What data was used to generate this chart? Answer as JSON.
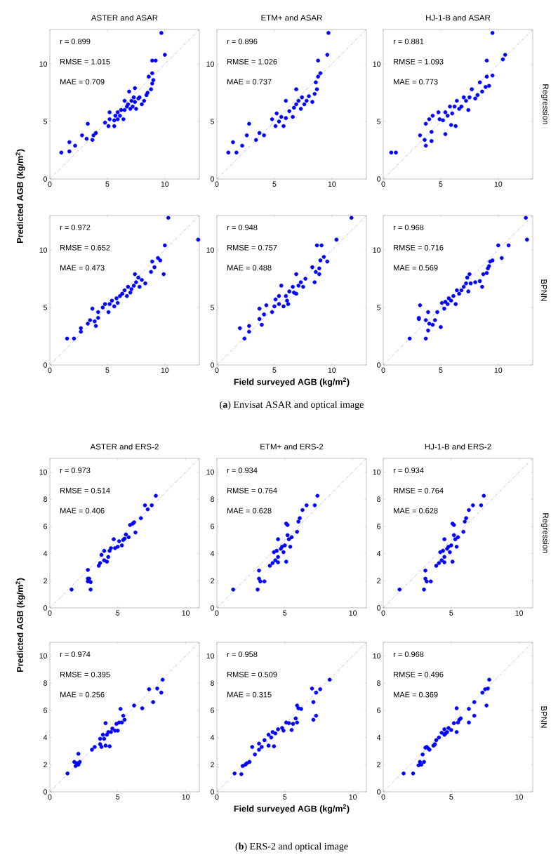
{
  "chart_data": [
    {
      "type": "scatter",
      "title": "ASTER and ASAR",
      "ylabel": "Predicted AGB (kg/m$^{2}$)",
      "annotations": [
        "r = 0.899",
        "RMSE = 1.015",
        "MAE = 0.709"
      ],
      "xlim": [
        0,
        13
      ],
      "ylim": [
        0,
        13
      ],
      "xticks": [
        0,
        5,
        10
      ],
      "yticks": [
        0,
        5,
        10
      ],
      "series": [
        {
          "marker": "circle",
          "color": "#0000ff",
          "x": [
            1.0,
            1.7,
            1.7,
            2.2,
            2.8,
            3.2,
            3.3,
            3.7,
            3.8,
            4.0,
            4.8,
            5.1,
            5.2,
            5.2,
            5.6,
            5.6,
            5.7,
            5.9,
            5.9,
            6.1,
            6.2,
            6.4,
            6.5,
            6.5,
            6.7,
            6.8,
            6.9,
            7.0,
            7.1,
            7.2,
            7.3,
            7.4,
            7.4,
            7.5,
            7.7,
            7.8,
            8.0,
            8.2,
            8.4,
            8.5,
            8.6,
            8.8,
            8.9,
            8.9,
            9.0,
            8.9,
            9.2,
            9.7,
            10.0
          ],
          "values": [
            2.3,
            2.4,
            3.2,
            2.9,
            3.8,
            3.5,
            4.8,
            3.4,
            3.8,
            4.0,
            4.9,
            4.6,
            5.8,
            5.2,
            5.1,
            4.6,
            5.5,
            5.8,
            5.2,
            5.5,
            6.0,
            5.2,
            6.0,
            6.8,
            6.3,
            6.5,
            7.6,
            6.1,
            6.8,
            6.3,
            7.1,
            6.7,
            7.9,
            6.1,
            7.0,
            7.1,
            6.5,
            6.8,
            7.3,
            7.5,
            8.9,
            7.8,
            8.3,
            9.2,
            8.6,
            10.3,
            10.3,
            12.7,
            10.8
          ]
        },
        {
          "type": "line",
          "color": "#9999dd",
          "line_style": "dashed",
          "x": [
            0,
            13
          ],
          "values": [
            0,
            13
          ]
        }
      ]
    },
    {
      "type": "scatter",
      "title": "ETM+ and ASAR",
      "annotations": [
        "r = 0.896",
        "RMSE = 1.026",
        "MAE = 0.737"
      ],
      "xlim": [
        0,
        13
      ],
      "ylim": [
        0,
        13
      ],
      "xticks": [
        0,
        5,
        10
      ],
      "yticks": [
        0,
        5,
        10
      ],
      "series": [
        {
          "marker": "circle",
          "color": "#0000ff",
          "x": [
            1.0,
            1.4,
            1.7,
            2.2,
            2.6,
            2.8,
            3.4,
            3.7,
            4.1,
            4.8,
            5.1,
            5.2,
            5.4,
            5.6,
            5.8,
            6.0,
            6.0,
            6.3,
            6.6,
            6.7,
            6.9,
            6.9,
            7.1,
            7.3,
            7.4,
            7.6,
            7.8,
            8.0,
            8.3,
            8.5,
            8.6,
            8.7,
            8.8,
            9.0,
            8.8,
            9.6,
            9.7
          ],
          "values": [
            2.3,
            3.2,
            2.3,
            2.9,
            3.8,
            4.8,
            3.4,
            4.0,
            3.8,
            5.2,
            4.6,
            5.7,
            5.0,
            5.4,
            4.6,
            5.3,
            6.8,
            5.9,
            5.4,
            6.2,
            6.5,
            7.8,
            6.8,
            6.1,
            7.1,
            6.5,
            6.8,
            7.2,
            6.7,
            7.4,
            8.4,
            7.8,
            8.9,
            9.2,
            10.3,
            10.8,
            12.7
          ]
        },
        {
          "type": "line",
          "color": "#9999dd",
          "line_style": "dashed",
          "x": [
            0,
            13
          ],
          "values": [
            0,
            13
          ]
        }
      ]
    },
    {
      "type": "scatter",
      "title": "HJ-1-B and ASAR",
      "y2label": "Regression",
      "annotations": [
        "r = 0.881",
        "RMSE = 1.093",
        "MAE = 0.773"
      ],
      "xlim": [
        0,
        13
      ],
      "ylim": [
        0,
        13
      ],
      "xticks": [
        0,
        5,
        10
      ],
      "yticks": [
        0,
        5,
        10
      ],
      "series": [
        {
          "marker": "circle",
          "color": "#0000ff",
          "x": [
            0.7,
            1.1,
            3.2,
            3.6,
            3.7,
            3.7,
            4.0,
            4.2,
            4.3,
            4.2,
            4.8,
            4.9,
            5.2,
            5.4,
            5.4,
            5.6,
            5.8,
            5.9,
            6.0,
            6.2,
            6.3,
            6.4,
            6.6,
            6.8,
            7.0,
            7.2,
            7.4,
            7.5,
            7.7,
            8.0,
            8.2,
            8.4,
            8.6,
            8.9,
            9.0,
            9.0,
            9.2,
            9.5,
            9.5,
            10.4,
            10.6
          ],
          "values": [
            2.3,
            2.3,
            3.8,
            3.4,
            2.9,
            4.8,
            5.2,
            4.1,
            5.5,
            3.3,
            5.8,
            5.2,
            5.1,
            3.9,
            5.8,
            5.5,
            6.3,
            4.7,
            5.7,
            6.3,
            4.6,
            6.8,
            6.1,
            6.3,
            7.1,
            6.8,
            6.0,
            7.1,
            7.8,
            7.0,
            7.3,
            8.4,
            7.6,
            8.0,
            8.9,
            10.3,
            8.1,
            9.0,
            12.7,
            10.4,
            10.8
          ]
        },
        {
          "type": "line",
          "color": "#9999dd",
          "line_style": "dashed",
          "x": [
            0,
            13
          ],
          "values": [
            0,
            13
          ]
        }
      ]
    },
    {
      "type": "scatter",
      "annotations": [
        "r = 0.972",
        "RMSE = 0.652",
        "MAE = 0.473"
      ],
      "xlim": [
        0,
        13
      ],
      "ylim": [
        0,
        13
      ],
      "xticks": [
        0,
        5,
        10
      ],
      "yticks": [
        0,
        5,
        10
      ],
      "series": [
        {
          "marker": "circle",
          "color": "#0000ff",
          "x": [
            1.5,
            2.1,
            2.7,
            2.7,
            3.3,
            3.5,
            3.7,
            3.9,
            4.0,
            4.2,
            4.2,
            4.6,
            4.8,
            5.1,
            5.2,
            5.4,
            5.6,
            5.8,
            5.9,
            6.1,
            6.3,
            6.5,
            6.7,
            6.8,
            7.0,
            7.1,
            7.3,
            7.4,
            7.5,
            7.7,
            7.8,
            8.0,
            8.3,
            8.8,
            8.9,
            9.1,
            9.4,
            9.6,
            9.9,
            10.0,
            10.3,
            12.9
          ],
          "values": [
            2.3,
            2.3,
            2.9,
            3.2,
            3.6,
            3.9,
            4.9,
            3.8,
            3.4,
            4.1,
            4.6,
            5.0,
            5.3,
            4.6,
            5.3,
            5.6,
            5.1,
            5.8,
            5.4,
            6.0,
            6.2,
            6.5,
            6.0,
            6.8,
            6.3,
            6.6,
            6.9,
            7.9,
            7.2,
            7.6,
            6.8,
            7.4,
            7.1,
            8.1,
            9.0,
            8.5,
            9.3,
            9.1,
            7.9,
            10.4,
            12.8,
            10.9
          ]
        },
        {
          "type": "line",
          "color": "#9999dd",
          "line_style": "dashed",
          "x": [
            0,
            13
          ],
          "values": [
            0,
            13
          ]
        }
      ]
    },
    {
      "type": "scatter",
      "xlabel": "Field surveyed AGB (kg/m$^{2}$)",
      "annotations": [
        "r = 0.948",
        "RMSE = 0.757",
        "MAE = 0.488",
        "(**a**) Envisat ASAR and optical image"
      ],
      "xlim": [
        0,
        13
      ],
      "ylim": [
        0,
        13
      ],
      "xticks": [
        0,
        5,
        10
      ],
      "yticks": [
        0,
        5,
        10
      ],
      "series": [
        {
          "marker": "circle",
          "color": "#0000ff",
          "x": [
            2.0,
            2.4,
            2.8,
            2.8,
            3.7,
            3.7,
            3.9,
            4.1,
            4.3,
            4.8,
            5.0,
            5.1,
            5.4,
            5.4,
            5.6,
            5.8,
            6.0,
            6.1,
            6.3,
            6.2,
            6.6,
            6.7,
            6.9,
            6.9,
            7.1,
            7.3,
            7.5,
            7.7,
            8.3,
            8.5,
            8.6,
            8.7,
            8.9,
            8.9,
            9.0,
            9.1,
            9.3,
            9.6,
            10.4,
            11.7
          ],
          "values": [
            3.2,
            2.3,
            2.9,
            3.4,
            4.0,
            4.9,
            3.5,
            4.4,
            5.2,
            4.6,
            5.1,
            5.7,
            5.3,
            6.0,
            6.9,
            5.1,
            6.0,
            5.6,
            6.4,
            5.3,
            6.8,
            6.3,
            6.2,
            7.9,
            6.9,
            7.2,
            6.8,
            7.5,
            8.5,
            7.2,
            8.1,
            10.4,
            7.9,
            8.4,
            9.1,
            10.4,
            9.4,
            9.0,
            10.9,
            12.8
          ]
        },
        {
          "type": "line",
          "color": "#9999dd",
          "line_style": "dashed",
          "x": [
            0,
            13
          ],
          "values": [
            0,
            13
          ]
        }
      ]
    },
    {
      "type": "scatter",
      "y2label": "BPNN",
      "annotations": [
        "r = 0.968",
        "RMSE = 0.716",
        "MAE = 0.569"
      ],
      "xlim": [
        0,
        13
      ],
      "ylim": [
        0,
        13
      ],
      "xticks": [
        0,
        5,
        10
      ],
      "yticks": [
        0,
        5,
        10
      ],
      "series": [
        {
          "marker": "circle",
          "color": "#0000ff",
          "x": [
            2.3,
            3.1,
            3.1,
            3.2,
            3.7,
            3.7,
            3.9,
            3.9,
            4.0,
            4.3,
            4.5,
            4.7,
            5.0,
            5.1,
            5.3,
            5.4,
            5.6,
            5.7,
            5.9,
            6.1,
            6.3,
            6.4,
            6.6,
            6.8,
            7.0,
            7.2,
            7.3,
            7.4,
            7.5,
            7.6,
            8.0,
            8.4,
            8.6,
            8.7,
            9.0,
            9.1,
            9.2,
            9.3,
            9.5,
            10.0,
            10.3,
            10.9,
            12.4,
            12.5
          ],
          "values": [
            2.3,
            4.1,
            4.0,
            5.2,
            2.3,
            3.9,
            3.0,
            4.6,
            3.6,
            3.5,
            3.9,
            4.6,
            3.3,
            5.4,
            4.9,
            5.5,
            5.3,
            5.8,
            5.6,
            6.0,
            5.3,
            6.5,
            6.2,
            6.5,
            6.8,
            7.1,
            7.6,
            6.4,
            7.9,
            7.1,
            7.2,
            7.3,
            6.8,
            7.9,
            8.0,
            8.4,
            8.6,
            9.0,
            9.1,
            10.4,
            9.3,
            10.4,
            12.8,
            10.9
          ]
        },
        {
          "type": "line",
          "color": "#9999dd",
          "line_style": "dashed",
          "x": [
            0,
            13
          ],
          "values": [
            0,
            13
          ]
        }
      ]
    },
    {
      "type": "scatter",
      "title": "ASTER and ERS-2",
      "ylabel": "Predicted AGB (kg/m$^{2}$)",
      "annotations": [
        "r = 0.973",
        "RMSE = 0.514",
        "MAE = 0.406"
      ],
      "xlim": [
        0,
        11
      ],
      "ylim": [
        0,
        11
      ],
      "xticks": [
        0,
        5,
        10
      ],
      "yticks": [
        0,
        2,
        4,
        6,
        8,
        10
      ],
      "series": [
        {
          "marker": "circle",
          "color": "#0000ff",
          "x": [
            1.6,
            2.8,
            2.8,
            2.9,
            2.8,
            3.0,
            3.0,
            3.6,
            3.7,
            3.8,
            4.0,
            4.0,
            4.2,
            4.3,
            4.4,
            4.5,
            4.7,
            4.8,
            5.0,
            5.1,
            5.3,
            5.4,
            5.5,
            5.6,
            5.8,
            5.9,
            6.1,
            6.2,
            6.3,
            6.7,
            7.0,
            7.2,
            7.5,
            7.8
          ],
          "values": [
            1.35,
            2.8,
            2.15,
            2.15,
            1.95,
            1.9,
            1.35,
            3.1,
            3.3,
            3.9,
            4.2,
            3.5,
            3.4,
            3.75,
            4.2,
            4.4,
            5.05,
            4.4,
            4.5,
            4.9,
            4.6,
            5.0,
            5.1,
            5.4,
            5.2,
            6.1,
            6.2,
            6.3,
            5.55,
            6.6,
            7.55,
            7.25,
            7.55,
            8.25
          ]
        },
        {
          "type": "line",
          "color": "#9999dd",
          "line_style": "dashed",
          "x": [
            0,
            11
          ],
          "values": [
            0,
            11
          ]
        }
      ]
    },
    {
      "type": "scatter",
      "title": "ETM+ and ERS-2",
      "annotations": [
        "r = 0.934",
        "RMSE = 0.764",
        "MAE = 0.628"
      ],
      "xlim": [
        0,
        11
      ],
      "ylim": [
        0,
        11
      ],
      "xticks": [
        0,
        5,
        10
      ],
      "yticks": [
        0,
        2,
        4,
        6,
        8,
        10
      ],
      "series": [
        {
          "marker": "circle",
          "color": "#0000ff",
          "x": [
            1.2,
            3.0,
            3.1,
            3.1,
            3.2,
            3.5,
            3.9,
            4.1,
            4.2,
            4.3,
            4.4,
            4.5,
            4.5,
            4.5,
            4.7,
            4.8,
            4.9,
            5.0,
            5.1,
            5.1,
            5.2,
            5.2,
            5.3,
            5.4,
            5.5,
            5.9,
            6.0,
            6.1,
            6.3,
            6.6,
            7.2,
            7.4
          ],
          "values": [
            1.35,
            1.35,
            2.75,
            2.15,
            1.95,
            1.95,
            3.1,
            3.3,
            4.1,
            3.5,
            4.2,
            3.35,
            5.05,
            3.75,
            4.35,
            4.5,
            4.1,
            4.6,
            3.4,
            6.2,
            5.35,
            6.1,
            5.05,
            4.5,
            5.2,
            5.6,
            6.35,
            6.6,
            7.2,
            7.55,
            7.55,
            8.25
          ]
        },
        {
          "type": "line",
          "color": "#9999dd",
          "line_style": "dashed",
          "x": [
            0,
            11
          ],
          "values": [
            0,
            11
          ]
        }
      ]
    },
    {
      "type": "scatter",
      "title": "HJ-1-B and ERS-2",
      "y2label": "Regression",
      "annotations": [
        "r = 0.934",
        "RMSE = 0.764",
        "MAE = 0.628"
      ],
      "xlim": [
        0,
        11
      ],
      "ylim": [
        0,
        11
      ],
      "xticks": [
        0,
        5,
        10
      ],
      "yticks": [
        0,
        2,
        4,
        6,
        8,
        10
      ],
      "series": [
        {
          "marker": "circle",
          "color": "#0000ff",
          "x": [
            1.2,
            3.0,
            3.1,
            3.1,
            3.2,
            3.5,
            3.9,
            4.1,
            4.2,
            4.3,
            4.4,
            4.5,
            4.5,
            4.5,
            4.7,
            4.8,
            4.9,
            5.0,
            5.1,
            5.1,
            5.2,
            5.2,
            5.3,
            5.4,
            5.5,
            5.9,
            6.0,
            6.1,
            6.3,
            6.6,
            7.2,
            7.4
          ],
          "values": [
            1.35,
            1.35,
            2.75,
            2.15,
            1.95,
            1.95,
            3.1,
            3.3,
            4.1,
            3.5,
            4.2,
            3.35,
            5.05,
            3.75,
            4.35,
            4.5,
            4.1,
            4.6,
            3.4,
            6.2,
            5.35,
            6.1,
            5.05,
            4.5,
            5.2,
            5.6,
            6.35,
            6.6,
            7.2,
            7.55,
            7.55,
            8.25
          ]
        },
        {
          "type": "line",
          "color": "#9999dd",
          "line_style": "dashed",
          "x": [
            0,
            11
          ],
          "values": [
            0,
            11
          ]
        }
      ]
    },
    {
      "type": "scatter",
      "annotations": [
        "r = 0.974",
        "RMSE = 0.395",
        "MAE = 0.256"
      ],
      "xlim": [
        0,
        11
      ],
      "ylim": [
        0,
        11
      ],
      "xticks": [
        0,
        5,
        10
      ],
      "yticks": [
        0,
        2,
        4,
        6,
        8,
        10
      ],
      "series": [
        {
          "marker": "circle",
          "color": "#0000ff",
          "x": [
            1.3,
            1.8,
            1.9,
            2.0,
            2.1,
            2.2,
            2.1,
            3.1,
            3.3,
            3.7,
            3.7,
            3.8,
            3.9,
            4.0,
            4.1,
            4.1,
            4.2,
            4.3,
            4.4,
            4.5,
            4.6,
            4.8,
            4.9,
            5.0,
            5.1,
            5.2,
            5.3,
            5.4,
            5.5,
            6.2,
            6.8,
            7.3,
            7.6,
            7.9,
            8.2,
            8.3
          ],
          "values": [
            1.35,
            2.2,
            1.9,
            2.1,
            2.8,
            2.2,
            2.0,
            3.1,
            3.3,
            3.5,
            3.9,
            3.3,
            4.2,
            3.9,
            3.4,
            5.05,
            4.2,
            4.4,
            3.35,
            4.4,
            4.65,
            4.5,
            5.0,
            4.5,
            5.1,
            6.1,
            5.1,
            5.6,
            5.3,
            6.35,
            6.15,
            7.55,
            6.6,
            7.6,
            7.3,
            8.25
          ]
        },
        {
          "type": "line",
          "color": "#9999dd",
          "line_style": "dashed",
          "x": [
            0,
            11
          ],
          "values": [
            0,
            11
          ]
        }
      ]
    },
    {
      "type": "scatter",
      "xlabel": "Field surveyed AGB (kg/m$^{2}$)",
      "annotations": [
        "r = 0.958",
        "RMSE = 0.509",
        "MAE = 0.315",
        "(**b**) ERS-2 and optical image"
      ],
      "xlim": [
        0,
        11
      ],
      "ylim": [
        0,
        11
      ],
      "xticks": [
        0,
        5,
        10
      ],
      "yticks": [
        0,
        2,
        4,
        6,
        8,
        10
      ],
      "series": [
        {
          "marker": "circle",
          "color": "#0000ff",
          "x": [
            1.3,
            1.8,
            1.9,
            2.1,
            2.2,
            2.4,
            2.6,
            2.8,
            3.1,
            3.1,
            3.3,
            3.5,
            3.8,
            3.8,
            4.0,
            4.1,
            4.2,
            4.3,
            4.5,
            4.8,
            4.9,
            5.1,
            5.3,
            5.5,
            5.6,
            5.8,
            5.9,
            5.9,
            6.0,
            6.2,
            7.0,
            7.1,
            7.1,
            7.3,
            7.3,
            7.6,
            8.3
          ],
          "values": [
            1.35,
            1.3,
            1.9,
            2.0,
            2.1,
            2.2,
            3.3,
            2.75,
            3.1,
            3.55,
            3.3,
            3.8,
            4.2,
            3.4,
            4.0,
            4.4,
            3.35,
            4.3,
            4.6,
            4.7,
            4.5,
            5.1,
            5.05,
            4.55,
            5.0,
            5.4,
            6.35,
            5.1,
            6.15,
            6.1,
            7.6,
            6.6,
            5.3,
            5.6,
            7.3,
            7.55,
            8.25
          ]
        },
        {
          "type": "line",
          "color": "#9999dd",
          "line_style": "dashed",
          "x": [
            0,
            11
          ],
          "values": [
            0,
            11
          ]
        }
      ]
    },
    {
      "type": "scatter",
      "y2label": "BPNN",
      "annotations": [
        "r = 0.968",
        "RMSE = 0.496",
        "MAE = 0.369"
      ],
      "xlim": [
        0,
        11
      ],
      "ylim": [
        0,
        11
      ],
      "xticks": [
        0,
        5,
        10
      ],
      "yticks": [
        0,
        2,
        4,
        6,
        8,
        10
      ],
      "series": [
        {
          "marker": "circle",
          "color": "#0000ff",
          "x": [
            1.5,
            2.2,
            2.6,
            2.7,
            2.8,
            2.9,
            3.0,
            3.1,
            3.2,
            3.3,
            3.4,
            3.7,
            3.8,
            3.9,
            4.1,
            4.3,
            4.5,
            4.5,
            4.6,
            4.7,
            4.8,
            5.0,
            5.2,
            5.4,
            5.4,
            5.5,
            5.6,
            5.7,
            6.3,
            6.3,
            6.7,
            6.7,
            7.3,
            7.5,
            7.6,
            7.7,
            7.8
          ],
          "values": [
            1.35,
            1.35,
            1.95,
            2.2,
            2.0,
            2.75,
            2.2,
            3.25,
            3.3,
            3.2,
            3.1,
            3.4,
            3.5,
            3.8,
            4.0,
            4.35,
            4.6,
            4.2,
            4.3,
            4.4,
            4.7,
            4.55,
            5.05,
            6.15,
            4.4,
            5.1,
            5.3,
            5.4,
            6.1,
            5.1,
            6.6,
            5.6,
            7.3,
            7.55,
            6.35,
            7.6,
            8.25
          ]
        },
        {
          "type": "line",
          "color": "#9999dd",
          "line_style": "dashed",
          "x": [
            0,
            11
          ],
          "values": [
            0,
            11
          ]
        }
      ]
    }
  ]
}
